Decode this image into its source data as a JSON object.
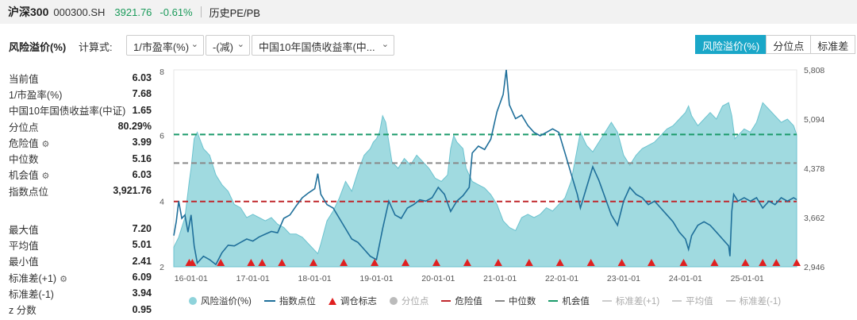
{
  "header": {
    "name": "沪深300",
    "code": "000300.SH",
    "price": "3921.76",
    "change": "-0.61%",
    "link": "历史PE/PB"
  },
  "controls": {
    "title": "风险溢价(%)",
    "calc_label": "计算式:",
    "select1": "1/市盈率(%)",
    "select2": "-(减)",
    "select3": "中国10年国债收益率(中...",
    "tabs": [
      "风险溢价(%)",
      "分位点",
      "标准差"
    ]
  },
  "stats_top": [
    {
      "label": "当前值",
      "value": "6.03",
      "gear": false
    },
    {
      "label": "1/市盈率(%)",
      "value": "7.68",
      "gear": false
    },
    {
      "label": "中国10年国债收益率(中证)",
      "value": "1.65",
      "gear": false
    },
    {
      "label": "分位点",
      "value": "80.29%",
      "gear": false
    },
    {
      "label": "危险值",
      "value": "3.99",
      "gear": true
    },
    {
      "label": "中位数",
      "value": "5.16",
      "gear": false
    },
    {
      "label": "机会值",
      "value": "6.03",
      "gear": true
    },
    {
      "label": "指数点位",
      "value": "3,921.76",
      "gear": false
    }
  ],
  "stats_bottom": [
    {
      "label": "最大值",
      "value": "7.20",
      "gear": false
    },
    {
      "label": "平均值",
      "value": "5.01",
      "gear": false
    },
    {
      "label": "最小值",
      "value": "2.41",
      "gear": false
    },
    {
      "label": "标准差(+1)",
      "value": "6.09",
      "gear": true
    },
    {
      "label": "标准差(-1)",
      "value": "3.94",
      "gear": false
    },
    {
      "label": "z 分数",
      "value": "0.95",
      "gear": false
    }
  ],
  "chart_data": {
    "type": "area",
    "x_ticks": [
      "16-01-01",
      "17-01-01",
      "18-01-01",
      "19-01-01",
      "20-01-01",
      "21-01-01",
      "22-01-01",
      "23-01-01",
      "24-01-01",
      "25-01-01"
    ],
    "x_range": [
      2015.72,
      2025.8
    ],
    "y_left": {
      "ticks": [
        "2",
        "4",
        "6",
        "8"
      ],
      "range": [
        2,
        8
      ]
    },
    "y_right": {
      "ticks": [
        "2,946",
        "3,662",
        "4,378",
        "5,094",
        "5,808"
      ],
      "range": [
        2946,
        5808
      ]
    },
    "reference_lines": [
      {
        "name": "危险值",
        "value": 3.99,
        "color": "#c0282d",
        "style": "dashed"
      },
      {
        "name": "中位数",
        "value": 5.16,
        "color": "#888888",
        "style": "dashed"
      },
      {
        "name": "机会值",
        "value": 6.03,
        "color": "#1a9a6a",
        "style": "dashed"
      }
    ],
    "series": [
      {
        "name": "风险溢价(%)",
        "axis": "left",
        "color": "#8fd3db",
        "points": [
          [
            2015.72,
            2.6
          ],
          [
            2015.8,
            2.9
          ],
          [
            2015.9,
            3.5
          ],
          [
            2015.97,
            4.6
          ],
          [
            2016.0,
            5.0
          ],
          [
            2016.05,
            5.9
          ],
          [
            2016.1,
            6.1
          ],
          [
            2016.2,
            5.6
          ],
          [
            2016.3,
            5.4
          ],
          [
            2016.4,
            4.8
          ],
          [
            2016.5,
            4.5
          ],
          [
            2016.6,
            4.3
          ],
          [
            2016.7,
            3.9
          ],
          [
            2016.8,
            3.8
          ],
          [
            2016.9,
            3.5
          ],
          [
            2017.0,
            3.6
          ],
          [
            2017.1,
            3.5
          ],
          [
            2017.2,
            3.4
          ],
          [
            2017.3,
            3.5
          ],
          [
            2017.4,
            3.3
          ],
          [
            2017.5,
            3.2
          ],
          [
            2017.6,
            3.0
          ],
          [
            2017.7,
            3.0
          ],
          [
            2017.8,
            2.9
          ],
          [
            2017.9,
            2.7
          ],
          [
            2018.0,
            2.5
          ],
          [
            2018.05,
            2.4
          ],
          [
            2018.1,
            2.7
          ],
          [
            2018.2,
            3.4
          ],
          [
            2018.3,
            3.7
          ],
          [
            2018.4,
            4.1
          ],
          [
            2018.5,
            4.6
          ],
          [
            2018.6,
            4.3
          ],
          [
            2018.7,
            4.9
          ],
          [
            2018.8,
            5.4
          ],
          [
            2018.9,
            5.6
          ],
          [
            2018.95,
            5.8
          ],
          [
            2019.0,
            5.9
          ],
          [
            2019.05,
            6.1
          ],
          [
            2019.1,
            6.6
          ],
          [
            2019.15,
            6.4
          ],
          [
            2019.25,
            5.2
          ],
          [
            2019.35,
            5.0
          ],
          [
            2019.45,
            5.3
          ],
          [
            2019.55,
            5.1
          ],
          [
            2019.65,
            5.4
          ],
          [
            2019.75,
            5.2
          ],
          [
            2019.85,
            5.0
          ],
          [
            2019.95,
            4.7
          ],
          [
            2020.05,
            4.6
          ],
          [
            2020.15,
            4.8
          ],
          [
            2020.2,
            5.6
          ],
          [
            2020.25,
            6.0
          ],
          [
            2020.3,
            5.8
          ],
          [
            2020.4,
            5.6
          ],
          [
            2020.45,
            5.0
          ],
          [
            2020.55,
            4.6
          ],
          [
            2020.65,
            4.5
          ],
          [
            2020.75,
            4.4
          ],
          [
            2020.85,
            4.2
          ],
          [
            2020.95,
            3.9
          ],
          [
            2021.05,
            3.4
          ],
          [
            2021.15,
            3.2
          ],
          [
            2021.25,
            3.1
          ],
          [
            2021.35,
            3.5
          ],
          [
            2021.45,
            3.6
          ],
          [
            2021.55,
            3.5
          ],
          [
            2021.65,
            3.6
          ],
          [
            2021.75,
            3.8
          ],
          [
            2021.85,
            3.7
          ],
          [
            2021.95,
            3.9
          ],
          [
            2022.05,
            4.1
          ],
          [
            2022.15,
            4.6
          ],
          [
            2022.25,
            5.6
          ],
          [
            2022.3,
            6.1
          ],
          [
            2022.4,
            5.7
          ],
          [
            2022.5,
            5.5
          ],
          [
            2022.6,
            5.8
          ],
          [
            2022.7,
            6.1
          ],
          [
            2022.8,
            6.4
          ],
          [
            2022.9,
            6.1
          ],
          [
            2023.0,
            5.4
          ],
          [
            2023.1,
            5.1
          ],
          [
            2023.2,
            5.4
          ],
          [
            2023.3,
            5.6
          ],
          [
            2023.4,
            5.7
          ],
          [
            2023.5,
            5.8
          ],
          [
            2023.6,
            6.0
          ],
          [
            2023.7,
            6.2
          ],
          [
            2023.8,
            6.3
          ],
          [
            2023.9,
            6.5
          ],
          [
            2024.0,
            6.7
          ],
          [
            2024.05,
            6.9
          ],
          [
            2024.1,
            6.6
          ],
          [
            2024.2,
            6.3
          ],
          [
            2024.3,
            6.5
          ],
          [
            2024.4,
            6.7
          ],
          [
            2024.5,
            6.5
          ],
          [
            2024.6,
            6.9
          ],
          [
            2024.7,
            7.0
          ],
          [
            2024.75,
            6.6
          ],
          [
            2024.8,
            5.9
          ],
          [
            2024.85,
            6.0
          ],
          [
            2024.95,
            6.2
          ],
          [
            2025.05,
            6.1
          ],
          [
            2025.15,
            6.4
          ],
          [
            2025.25,
            7.0
          ],
          [
            2025.35,
            6.8
          ],
          [
            2025.45,
            6.6
          ],
          [
            2025.55,
            6.4
          ],
          [
            2025.65,
            6.5
          ],
          [
            2025.75,
            6.3
          ],
          [
            2025.8,
            6.03
          ]
        ]
      },
      {
        "name": "指数点位",
        "axis": "right",
        "color": "#1f6f9a",
        "points": [
          [
            2015.72,
            3400
          ],
          [
            2015.76,
            3600
          ],
          [
            2015.8,
            3900
          ],
          [
            2015.85,
            3650
          ],
          [
            2015.9,
            3700
          ],
          [
            2015.95,
            3450
          ],
          [
            2016.0,
            3700
          ],
          [
            2016.05,
            3250
          ],
          [
            2016.1,
            3000
          ],
          [
            2016.2,
            3100
          ],
          [
            2016.3,
            3050
          ],
          [
            2016.4,
            2980
          ],
          [
            2016.5,
            3150
          ],
          [
            2016.6,
            3260
          ],
          [
            2016.7,
            3250
          ],
          [
            2016.8,
            3300
          ],
          [
            2016.9,
            3350
          ],
          [
            2017.0,
            3320
          ],
          [
            2017.1,
            3380
          ],
          [
            2017.2,
            3420
          ],
          [
            2017.3,
            3460
          ],
          [
            2017.4,
            3440
          ],
          [
            2017.5,
            3650
          ],
          [
            2017.6,
            3700
          ],
          [
            2017.7,
            3830
          ],
          [
            2017.8,
            3950
          ],
          [
            2017.9,
            4020
          ],
          [
            2018.0,
            4080
          ],
          [
            2018.05,
            4300
          ],
          [
            2018.1,
            4000
          ],
          [
            2018.2,
            3850
          ],
          [
            2018.3,
            3800
          ],
          [
            2018.4,
            3650
          ],
          [
            2018.5,
            3500
          ],
          [
            2018.6,
            3350
          ],
          [
            2018.7,
            3300
          ],
          [
            2018.8,
            3200
          ],
          [
            2018.9,
            3100
          ],
          [
            2019.0,
            3050
          ],
          [
            2019.1,
            3500
          ],
          [
            2019.2,
            3900
          ],
          [
            2019.3,
            3700
          ],
          [
            2019.4,
            3650
          ],
          [
            2019.5,
            3800
          ],
          [
            2019.6,
            3850
          ],
          [
            2019.7,
            3920
          ],
          [
            2019.8,
            3900
          ],
          [
            2019.9,
            3950
          ],
          [
            2020.0,
            4100
          ],
          [
            2020.1,
            4000
          ],
          [
            2020.2,
            3750
          ],
          [
            2020.3,
            3900
          ],
          [
            2020.4,
            3980
          ],
          [
            2020.5,
            4100
          ],
          [
            2020.55,
            4600
          ],
          [
            2020.65,
            4700
          ],
          [
            2020.75,
            4650
          ],
          [
            2020.85,
            4800
          ],
          [
            2020.95,
            5200
          ],
          [
            2021.05,
            5450
          ],
          [
            2021.1,
            5808
          ],
          [
            2021.15,
            5300
          ],
          [
            2021.25,
            5100
          ],
          [
            2021.35,
            5150
          ],
          [
            2021.45,
            5000
          ],
          [
            2021.55,
            4900
          ],
          [
            2021.65,
            4850
          ],
          [
            2021.75,
            4900
          ],
          [
            2021.85,
            4950
          ],
          [
            2021.95,
            4900
          ],
          [
            2022.05,
            4600
          ],
          [
            2022.15,
            4300
          ],
          [
            2022.25,
            4000
          ],
          [
            2022.3,
            3800
          ],
          [
            2022.4,
            4100
          ],
          [
            2022.5,
            4400
          ],
          [
            2022.6,
            4200
          ],
          [
            2022.7,
            3950
          ],
          [
            2022.8,
            3700
          ],
          [
            2022.9,
            3550
          ],
          [
            2023.0,
            3900
          ],
          [
            2023.1,
            4100
          ],
          [
            2023.2,
            4000
          ],
          [
            2023.3,
            3950
          ],
          [
            2023.4,
            3850
          ],
          [
            2023.5,
            3900
          ],
          [
            2023.6,
            3800
          ],
          [
            2023.7,
            3700
          ],
          [
            2023.8,
            3600
          ],
          [
            2023.9,
            3450
          ],
          [
            2024.0,
            3350
          ],
          [
            2024.05,
            3200
          ],
          [
            2024.1,
            3400
          ],
          [
            2024.2,
            3550
          ],
          [
            2024.3,
            3600
          ],
          [
            2024.4,
            3550
          ],
          [
            2024.5,
            3450
          ],
          [
            2024.6,
            3350
          ],
          [
            2024.7,
            3250
          ],
          [
            2024.72,
            3100
          ],
          [
            2024.75,
            3750
          ],
          [
            2024.78,
            4000
          ],
          [
            2024.85,
            3900
          ],
          [
            2024.95,
            3950
          ],
          [
            2025.05,
            3900
          ],
          [
            2025.15,
            3950
          ],
          [
            2025.25,
            3800
          ],
          [
            2025.35,
            3900
          ],
          [
            2025.45,
            3850
          ],
          [
            2025.55,
            3950
          ],
          [
            2025.65,
            3900
          ],
          [
            2025.75,
            3950
          ],
          [
            2025.8,
            3921.76
          ]
        ]
      }
    ],
    "markers": {
      "name": "调仓标志",
      "x": [
        2015.97,
        2016.02,
        2016.48,
        2016.97,
        2017.15,
        2017.47,
        2017.98,
        2018.47,
        2018.97,
        2019.47,
        2019.97,
        2020.47,
        2020.97,
        2021.47,
        2021.97,
        2022.47,
        2022.97,
        2023.45,
        2023.97,
        2024.47,
        2024.97,
        2025.25,
        2025.47,
        2025.8
      ]
    },
    "legend": [
      {
        "label": "风险溢价(%)",
        "kind": "dot",
        "color": "#8fd3db",
        "dim": false
      },
      {
        "label": "指数点位",
        "kind": "line",
        "color": "#1f6f9a",
        "dim": false
      },
      {
        "label": "调仓标志",
        "kind": "triangle",
        "color": "#e02020",
        "dim": false
      },
      {
        "label": "分位点",
        "kind": "dot",
        "color": "#bbbbbb",
        "dim": true
      },
      {
        "label": "危险值",
        "kind": "dash",
        "color": "#c0282d",
        "dim": false
      },
      {
        "label": "中位数",
        "kind": "dash",
        "color": "#888888",
        "dim": false
      },
      {
        "label": "机会值",
        "kind": "dash",
        "color": "#1a9a6a",
        "dim": false
      },
      {
        "label": "标准差(+1)",
        "kind": "dash",
        "color": "#cccccc",
        "dim": true
      },
      {
        "label": "平均值",
        "kind": "dash",
        "color": "#cccccc",
        "dim": true
      },
      {
        "label": "标准差(-1)",
        "kind": "dash",
        "color": "#cccccc",
        "dim": true
      }
    ]
  }
}
